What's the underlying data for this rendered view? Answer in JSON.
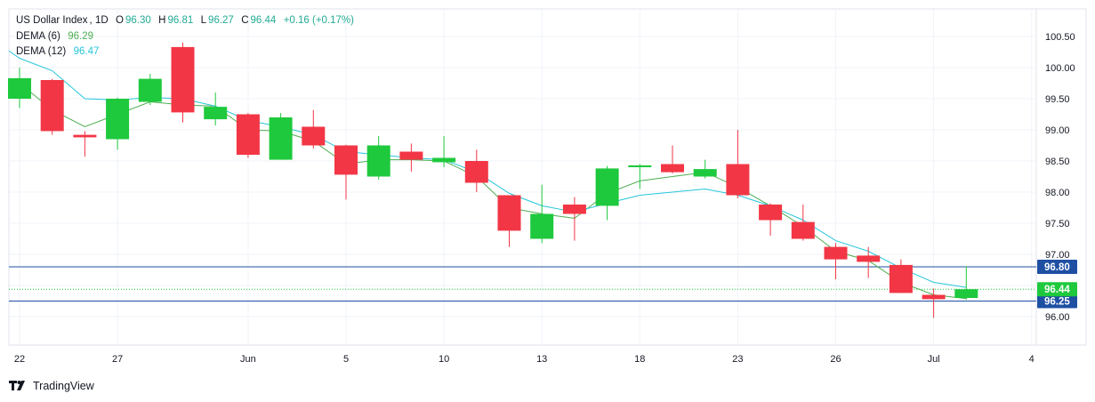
{
  "header": {
    "symbol": "US Dollar Index",
    "interval": "1D",
    "o_label": "O",
    "o": "96.30",
    "h_label": "H",
    "h": "96.81",
    "l_label": "L",
    "l": "96.27",
    "c_label": "C",
    "c": "96.44",
    "change": "+0.16 (+0.17%)"
  },
  "indicators": [
    {
      "label": "DEMA (6)",
      "value": "96.29",
      "color": "#4caf50"
    },
    {
      "label": "DEMA (12)",
      "value": "96.47",
      "color": "#26c6da"
    }
  ],
  "brand": "TradingView",
  "colors": {
    "up": "#1ec93d",
    "down": "#f23645",
    "hline": "#1e4fa3",
    "price": "#1ec93d",
    "grid": "#f0f3fa"
  },
  "chart_data": {
    "type": "candlestick",
    "title": "US Dollar Index, 1D",
    "y_ticks": [
      "100.50",
      "100.00",
      "99.50",
      "99.00",
      "98.50",
      "98.00",
      "97.50",
      "97.00",
      "96.50",
      "96.00"
    ],
    "ylim": [
      95.6,
      100.85
    ],
    "x_ticks": [
      {
        "label": "22",
        "i": 0
      },
      {
        "label": "27",
        "i": 3
      },
      {
        "label": "Jun",
        "i": 7
      },
      {
        "label": "5",
        "i": 10
      },
      {
        "label": "10",
        "i": 13
      },
      {
        "label": "13",
        "i": 16
      },
      {
        "label": "18",
        "i": 19
      },
      {
        "label": "23",
        "i": 22
      },
      {
        "label": "26",
        "i": 25
      },
      {
        "label": "Jul",
        "i": 28
      },
      {
        "label": "4",
        "i": 31
      }
    ],
    "candles": [
      {
        "o": 99.5,
        "h": 100.0,
        "l": 99.35,
        "c": 99.83
      },
      {
        "o": 99.8,
        "h": 99.82,
        "l": 98.92,
        "c": 98.98
      },
      {
        "o": 98.92,
        "h": 98.98,
        "l": 98.57,
        "c": 98.88
      },
      {
        "o": 98.85,
        "h": 99.52,
        "l": 98.68,
        "c": 99.5
      },
      {
        "o": 99.45,
        "h": 99.9,
        "l": 99.4,
        "c": 99.82
      },
      {
        "o": 100.33,
        "h": 100.4,
        "l": 99.12,
        "c": 99.28
      },
      {
        "o": 99.17,
        "h": 99.6,
        "l": 99.07,
        "c": 99.37
      },
      {
        "o": 99.25,
        "h": 99.27,
        "l": 98.55,
        "c": 98.6
      },
      {
        "o": 98.52,
        "h": 99.27,
        "l": 98.52,
        "c": 99.2
      },
      {
        "o": 99.05,
        "h": 99.32,
        "l": 98.7,
        "c": 98.75
      },
      {
        "o": 98.75,
        "h": 98.76,
        "l": 97.88,
        "c": 98.28
      },
      {
        "o": 98.25,
        "h": 98.9,
        "l": 98.2,
        "c": 98.75
      },
      {
        "o": 98.65,
        "h": 98.78,
        "l": 98.33,
        "c": 98.52
      },
      {
        "o": 98.48,
        "h": 98.9,
        "l": 98.4,
        "c": 98.55
      },
      {
        "o": 98.5,
        "h": 98.68,
        "l": 98.0,
        "c": 98.15
      },
      {
        "o": 97.95,
        "h": 97.95,
        "l": 97.12,
        "c": 97.38
      },
      {
        "o": 97.25,
        "h": 98.12,
        "l": 97.18,
        "c": 97.65
      },
      {
        "o": 97.8,
        "h": 97.92,
        "l": 97.22,
        "c": 97.65
      },
      {
        "o": 97.78,
        "h": 98.42,
        "l": 97.55,
        "c": 98.38
      },
      {
        "o": 98.4,
        "h": 98.45,
        "l": 98.05,
        "c": 98.43
      },
      {
        "o": 98.45,
        "h": 98.75,
        "l": 98.3,
        "c": 98.32
      },
      {
        "o": 98.25,
        "h": 98.52,
        "l": 98.22,
        "c": 98.37
      },
      {
        "o": 98.45,
        "h": 99.0,
        "l": 97.9,
        "c": 97.95
      },
      {
        "o": 97.8,
        "h": 97.82,
        "l": 97.3,
        "c": 97.55
      },
      {
        "o": 97.52,
        "h": 97.8,
        "l": 97.22,
        "c": 97.25
      },
      {
        "o": 97.12,
        "h": 97.18,
        "l": 96.6,
        "c": 96.92
      },
      {
        "o": 96.98,
        "h": 97.12,
        "l": 96.62,
        "c": 96.88
      },
      {
        "o": 96.83,
        "h": 96.92,
        "l": 96.38,
        "c": 96.38
      },
      {
        "o": 96.35,
        "h": 96.45,
        "l": 95.98,
        "c": 96.28
      },
      {
        "o": 96.3,
        "h": 96.81,
        "l": 96.27,
        "c": 96.44
      }
    ],
    "series": [
      {
        "name": "DEMA (6)",
        "color": "#4caf50",
        "values": [
          99.75,
          99.32,
          99.05,
          99.25,
          99.45,
          99.4,
          99.38,
          99.0,
          98.98,
          98.82,
          98.45,
          98.52,
          98.52,
          98.5,
          98.25,
          97.75,
          97.65,
          97.58,
          97.98,
          98.18,
          98.25,
          98.32,
          98.08,
          97.78,
          97.45,
          97.05,
          96.9,
          96.55,
          96.35,
          96.29
        ]
      },
      {
        "name": "DEMA (12)",
        "color": "#26c6da",
        "values": [
          100.15,
          99.95,
          99.5,
          99.48,
          99.52,
          99.5,
          99.38,
          99.15,
          99.05,
          98.92,
          98.65,
          98.6,
          98.55,
          98.52,
          98.32,
          97.98,
          97.78,
          97.68,
          97.82,
          97.95,
          98.0,
          98.05,
          97.95,
          97.78,
          97.55,
          97.22,
          97.05,
          96.78,
          96.55,
          96.47
        ]
      }
    ],
    "horizontal_lines": [
      {
        "value": 96.8,
        "label": "96.80"
      },
      {
        "value": 96.25,
        "label": "96.25"
      }
    ],
    "last_price": {
      "value": 96.44,
      "label": "96.44"
    }
  }
}
